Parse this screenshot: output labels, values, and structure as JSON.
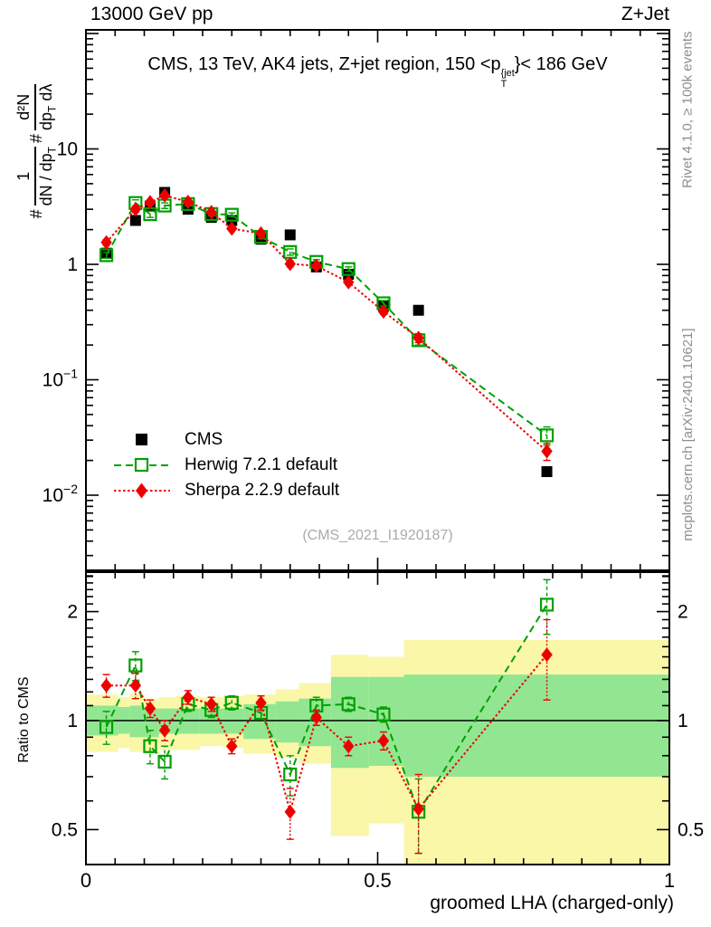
{
  "header": {
    "left": "13000 GeV pp",
    "right": "Z+Jet"
  },
  "panel_title": {
    "pre": "CMS, 13 TeV, AK4 jets, Z+jet region, 150 <p",
    "sup": "{jet",
    "sub": "T",
    "post": "}< 186 GeV"
  },
  "yaxis_label": {
    "hash1": "#",
    "frac1_num": "1",
    "frac1_den_pre": "dN / dp",
    "frac1_den_sub": "T",
    "hash2": "#",
    "frac2_num": "d²N",
    "frac2_den_pre": "dp",
    "frac2_den_sub": "T",
    "frac2_den_post": " dλ"
  },
  "ratio_ylabel": "Ratio to CMS",
  "watermark": "(CMS_2021_I1920187)",
  "side_notes": {
    "top": "Rivet 4.1.0, ≥ 100k events",
    "bottom": "mcplots.cern.ch [arXiv:2401.10621]"
  },
  "legend": [
    {
      "label": "CMS",
      "series": "cms"
    },
    {
      "label": "Herwig 7.2.1 default",
      "series": "herwig"
    },
    {
      "label": "Sherpa 2.2.9 default",
      "series": "sherpa"
    }
  ],
  "colors": {
    "cms": "#000000",
    "herwig": "#00a000",
    "sherpa": "#ee0000",
    "band_outer": "#faf7a8",
    "band_inner": "#92e692",
    "note_gray": "#8e8e8e",
    "watermark_gray": "#aaaaaa"
  },
  "chart_data": {
    "type": "line",
    "title": "CMS, 13 TeV, AK4 jets, Z+jet region, 150 < pT{jet} < 186 GeV",
    "xlabel": "groomed LHA (charged-only)",
    "ylabel": "# 1/(dN/dpT) # d²N/(dpT dλ)",
    "ratio_label": "Ratio to CMS",
    "xlim": [
      0,
      1
    ],
    "ylim_main": [
      0.002,
      100
    ],
    "yscale_main": "log",
    "ylim_ratio": [
      0.4,
      2.57
    ],
    "yscale_ratio": "log",
    "grid": false,
    "legend_position": "center-left",
    "x": [
      0.035,
      0.085,
      0.11,
      0.135,
      0.175,
      0.215,
      0.25,
      0.3,
      0.35,
      0.395,
      0.45,
      0.51,
      0.57,
      0.79
    ],
    "xticks": [
      {
        "label": "0",
        "value": 0
      },
      {
        "label": "0.5",
        "value": 0.5
      },
      {
        "label": "1",
        "value": 1
      }
    ],
    "xtick_minor_step": 0.05,
    "yticks_main": [
      {
        "label": "10",
        "exp": "",
        "value": 10
      },
      {
        "label": "1",
        "exp": "",
        "value": 1
      },
      {
        "label": "10",
        "exp": "−1",
        "value": 0.1
      },
      {
        "label": "10",
        "exp": "−2",
        "value": 0.01
      }
    ],
    "yticks_ratio": [
      {
        "label": "2",
        "value": 2
      },
      {
        "label": "1",
        "value": 1
      },
      {
        "label": "0.5",
        "value": 0.5
      }
    ],
    "series": [
      {
        "name": "CMS",
        "marker": "filled-square",
        "line": "none",
        "color": "#000000",
        "values": [
          1.25,
          2.4,
          3.2,
          4.2,
          3.0,
          2.55,
          2.4,
          1.65,
          1.8,
          0.95,
          0.82,
          0.44,
          0.4,
          0.016
        ],
        "yerr": [
          0.04,
          0.07,
          0.1,
          0.12,
          0.09,
          0.08,
          0.07,
          0.05,
          0.05,
          0.03,
          0.025,
          0.015,
          0.015,
          0.001
        ]
      },
      {
        "name": "Herwig 7.2.1 default",
        "marker": "open-square",
        "line": "dashed",
        "color": "#00a000",
        "values": [
          1.2,
          3.4,
          2.72,
          3.23,
          3.33,
          2.73,
          2.69,
          1.73,
          1.28,
          1.05,
          0.91,
          0.46,
          0.22,
          0.033
        ],
        "yerr": [
          0.07,
          0.22,
          0.17,
          0.18,
          0.12,
          0.1,
          0.1,
          0.06,
          0.08,
          0.05,
          0.04,
          0.025,
          0.02,
          0.006
        ],
        "ratio": [
          0.96,
          1.42,
          0.85,
          0.77,
          1.11,
          1.07,
          1.12,
          1.05,
          0.71,
          1.1,
          1.11,
          1.04,
          0.56,
          2.09
        ],
        "ratio_err": [
          0.1,
          0.13,
          0.09,
          0.08,
          0.05,
          0.05,
          0.05,
          0.04,
          0.09,
          0.06,
          0.05,
          0.05,
          0.13,
          0.36
        ]
      },
      {
        "name": "Sherpa 2.2.9 default",
        "marker": "filled-diamond",
        "line": "dotted",
        "color": "#ee0000",
        "values": [
          1.55,
          3.0,
          3.45,
          3.95,
          3.48,
          2.83,
          2.04,
          1.85,
          1.01,
          0.97,
          0.7,
          0.39,
          0.23,
          0.024
        ],
        "yerr": [
          0.09,
          0.18,
          0.14,
          0.14,
          0.11,
          0.09,
          0.07,
          0.06,
          0.06,
          0.04,
          0.03,
          0.02,
          0.02,
          0.004
        ],
        "ratio": [
          1.25,
          1.25,
          1.08,
          0.94,
          1.16,
          1.11,
          0.85,
          1.12,
          0.56,
          1.02,
          0.85,
          0.88,
          0.57,
          1.52
        ],
        "ratio_err": [
          0.09,
          0.1,
          0.06,
          0.06,
          0.05,
          0.05,
          0.04,
          0.05,
          0.09,
          0.05,
          0.05,
          0.05,
          0.14,
          0.38
        ]
      }
    ],
    "ratio_bands": {
      "outer": [
        [
          0.0,
          0.055,
          0.82,
          1.18
        ],
        [
          0.055,
          0.075,
          0.84,
          1.16
        ],
        [
          0.075,
          0.1,
          0.82,
          1.19
        ],
        [
          0.1,
          0.125,
          0.81,
          1.15
        ],
        [
          0.125,
          0.155,
          0.83,
          1.16
        ],
        [
          0.155,
          0.195,
          0.83,
          1.17
        ],
        [
          0.195,
          0.235,
          0.85,
          1.16
        ],
        [
          0.235,
          0.27,
          0.84,
          1.17
        ],
        [
          0.27,
          0.325,
          0.81,
          1.18
        ],
        [
          0.325,
          0.365,
          0.79,
          1.22
        ],
        [
          0.365,
          0.42,
          0.76,
          1.27
        ],
        [
          0.42,
          0.485,
          0.48,
          1.52
        ],
        [
          0.485,
          0.545,
          0.52,
          1.5
        ],
        [
          0.545,
          1.0,
          0.4,
          1.67
        ]
      ],
      "inner": [
        [
          0.0,
          0.055,
          0.91,
          1.1
        ],
        [
          0.055,
          0.075,
          0.92,
          1.09
        ],
        [
          0.075,
          0.1,
          0.9,
          1.1
        ],
        [
          0.1,
          0.125,
          0.9,
          1.08
        ],
        [
          0.125,
          0.155,
          0.92,
          1.08
        ],
        [
          0.155,
          0.195,
          0.92,
          1.08
        ],
        [
          0.195,
          0.235,
          0.92,
          1.08
        ],
        [
          0.235,
          0.27,
          0.92,
          1.08
        ],
        [
          0.27,
          0.325,
          0.89,
          1.11
        ],
        [
          0.325,
          0.365,
          0.87,
          1.13
        ],
        [
          0.365,
          0.42,
          0.85,
          1.15
        ],
        [
          0.42,
          0.485,
          0.74,
          1.32
        ],
        [
          0.485,
          0.545,
          0.75,
          1.32
        ],
        [
          0.545,
          1.0,
          0.7,
          1.34
        ]
      ]
    }
  },
  "xaxis_title": "groomed LHA (charged-only)"
}
